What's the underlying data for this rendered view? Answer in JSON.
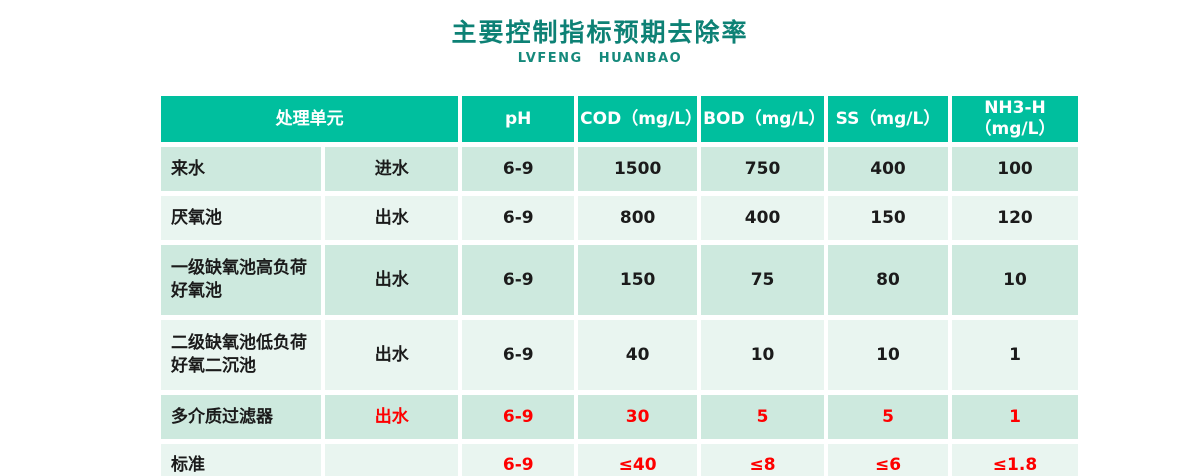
{
  "header": {
    "title": "主要控制指标预期去除率",
    "subtitle": "LVFENG HUANBAO"
  },
  "colors": {
    "title_text": "#0d8175",
    "table_header_bg": "#00bf9e",
    "row_odd_bg": "#cde9de",
    "row_even_bg": "#e9f5f0",
    "highlight_red": "#fe0000",
    "body_text": "#1b1b1b"
  },
  "table": {
    "headers": {
      "unit": "处理单元",
      "ph": "pH",
      "cod": "COD（mg/L）",
      "bod": "BOD（mg/L）",
      "ss": "SS（mg/L）",
      "nh3": "NH3-H（mg/L）"
    },
    "rows": [
      {
        "unit": "来水",
        "flow": "进水",
        "ph": "6-9",
        "cod": "1500",
        "bod": "750",
        "ss": "400",
        "nh3": "100"
      },
      {
        "unit": "厌氧池",
        "flow": "出水",
        "ph": "6-9",
        "cod": "800",
        "bod": "400",
        "ss": "150",
        "nh3": "120"
      },
      {
        "unit": "一级缺氧池高负荷好氧池",
        "flow": "出水",
        "ph": "6-9",
        "cod": "150",
        "bod": "75",
        "ss": "80",
        "nh3": "10"
      },
      {
        "unit": "二级缺氧池低负荷好氧二沉池",
        "flow": "出水",
        "ph": "6-9",
        "cod": "40",
        "bod": "10",
        "ss": "10",
        "nh3": "1"
      },
      {
        "unit": "多介质过滤器",
        "flow": "出水",
        "ph": "6-9",
        "cod": "30",
        "bod": "5",
        "ss": "5",
        "nh3": "1"
      },
      {
        "unit": "标准",
        "flow": "",
        "ph": "6-9",
        "cod": "≤40",
        "bod": "≤8",
        "ss": "≤6",
        "nh3": "≤1.8"
      }
    ]
  }
}
